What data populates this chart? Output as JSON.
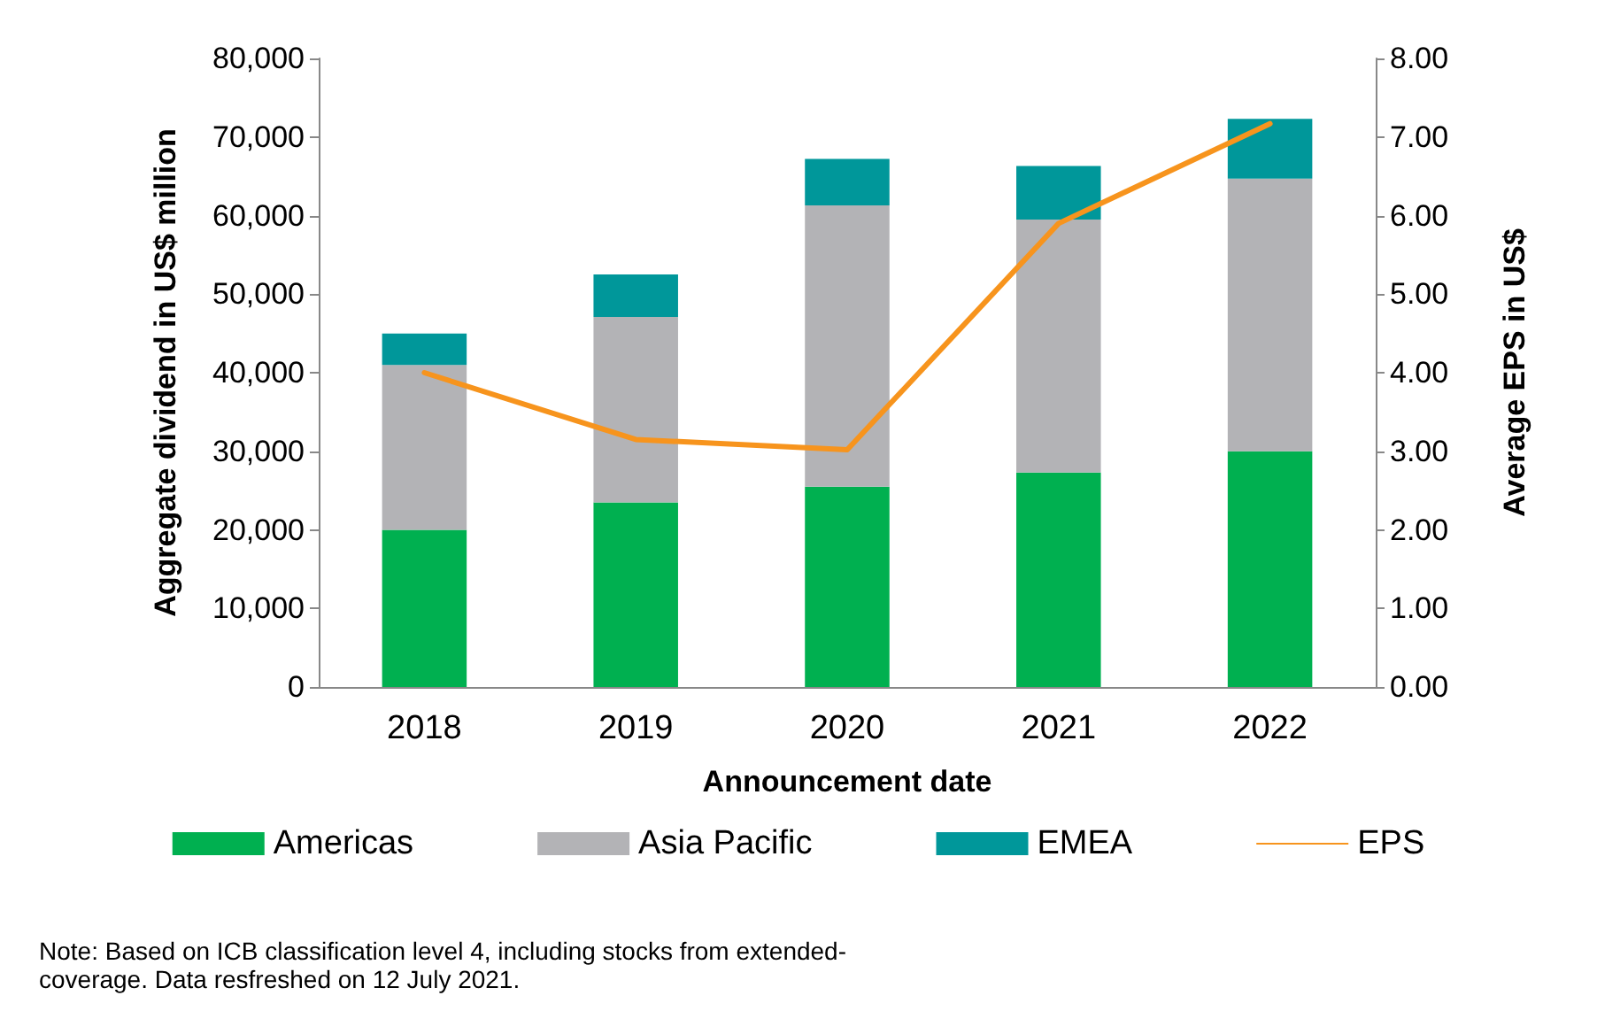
{
  "chart_data": {
    "type": "bar",
    "stacked": true,
    "xlabel": "Announcement date",
    "ylabel": "Aggregate dividend in US$ million",
    "y2label": "Average EPS in US$",
    "categories": [
      "2018",
      "2019",
      "2020",
      "2021",
      "2022"
    ],
    "series": [
      {
        "name": "Americas",
        "color": "#00b050",
        "values": [
          20000,
          23500,
          25500,
          27300,
          30000
        ]
      },
      {
        "name": "Asia Pacific",
        "color": "#b3b3b6",
        "values": [
          21000,
          23600,
          35800,
          32200,
          34700
        ]
      },
      {
        "name": "EMEA",
        "color": "#00979a",
        "values": [
          4000,
          5400,
          5900,
          6800,
          7600
        ]
      },
      {
        "name": "EPS",
        "type": "line",
        "axis": "y2",
        "color": "#f7941d",
        "marker": "none",
        "values": [
          4.0,
          3.15,
          3.02,
          5.9,
          7.17
        ]
      }
    ],
    "ylim": [
      0,
      80000
    ],
    "yticks": [
      {
        "value": 0,
        "label": "0"
      },
      {
        "value": 10000,
        "label": "10,000"
      },
      {
        "value": 20000,
        "label": "20,000"
      },
      {
        "value": 30000,
        "label": "30,000"
      },
      {
        "value": 40000,
        "label": "40,000"
      },
      {
        "value": 50000,
        "label": "50,000"
      },
      {
        "value": 60000,
        "label": "60,000"
      },
      {
        "value": 70000,
        "label": "70,000"
      },
      {
        "value": 80000,
        "label": "80,000"
      }
    ],
    "y2lim": [
      0,
      8
    ],
    "y2ticks": [
      {
        "value": 0,
        "label": "0.00"
      },
      {
        "value": 1,
        "label": "1.00"
      },
      {
        "value": 2,
        "label": "2.00"
      },
      {
        "value": 3,
        "label": "3.00"
      },
      {
        "value": 4,
        "label": "4.00"
      },
      {
        "value": 5,
        "label": "5.00"
      },
      {
        "value": 6,
        "label": "6.00"
      },
      {
        "value": 7,
        "label": "7.00"
      },
      {
        "value": 8,
        "label": "8.00"
      }
    ],
    "grid": false,
    "legend": "bottom",
    "annotations": [
      "Note: Based on ICB classification level 4, including stocks from extended-\ncoverage. Data resfreshed on 12 July 2021."
    ]
  }
}
